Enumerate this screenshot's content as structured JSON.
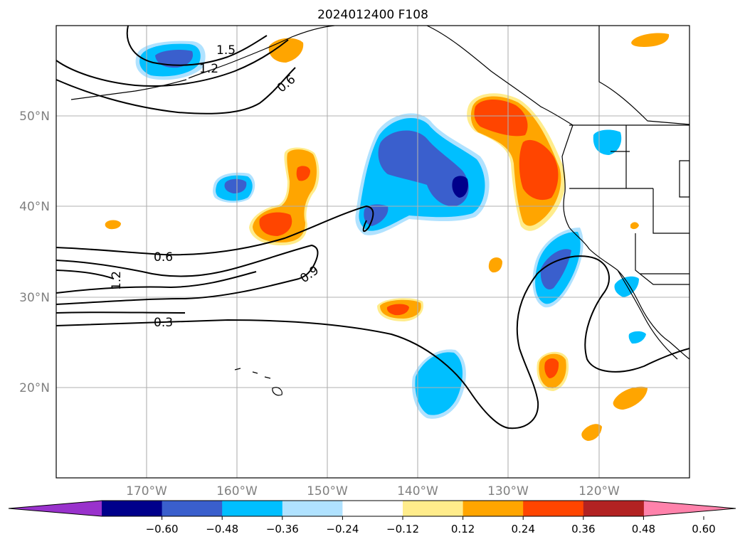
{
  "title": "2024012400 F108",
  "map": {
    "lon_range": [
      -180,
      -110
    ],
    "lat_range": [
      10,
      60
    ],
    "lat_ticks": [
      {
        "value": 50,
        "label": "50°N"
      },
      {
        "value": 40,
        "label": "40°N"
      },
      {
        "value": 30,
        "label": "30°N"
      },
      {
        "value": 20,
        "label": "20°N"
      }
    ],
    "lon_ticks": [
      {
        "value": -170,
        "label": "170°W"
      },
      {
        "value": -160,
        "label": "160°W"
      },
      {
        "value": -150,
        "label": "150°W"
      },
      {
        "value": -140,
        "label": "140°W"
      },
      {
        "value": -130,
        "label": "130°W"
      },
      {
        "value": -120,
        "label": "120°W"
      }
    ],
    "gridlines": true,
    "tick_label_color": "#808080"
  },
  "contour_labels": [
    "1.5",
    "1.2",
    "0.6",
    "0.6",
    "0.9",
    "1.2",
    "0.3"
  ],
  "colorbar": {
    "colors": [
      "#9932cc",
      "#00008b",
      "#3a5fcd",
      "#00bfff",
      "#b0e2ff",
      "#ffffff",
      "#ffec8b",
      "#ffa500",
      "#ff4500",
      "#b22222",
      "#ff82ab"
    ],
    "tick_labels": [
      "−0.60",
      "−0.48",
      "−0.36",
      "−0.24",
      "−0.12",
      "0.12",
      "0.24",
      "0.36",
      "0.48",
      "0.60"
    ],
    "extend": "both"
  }
}
